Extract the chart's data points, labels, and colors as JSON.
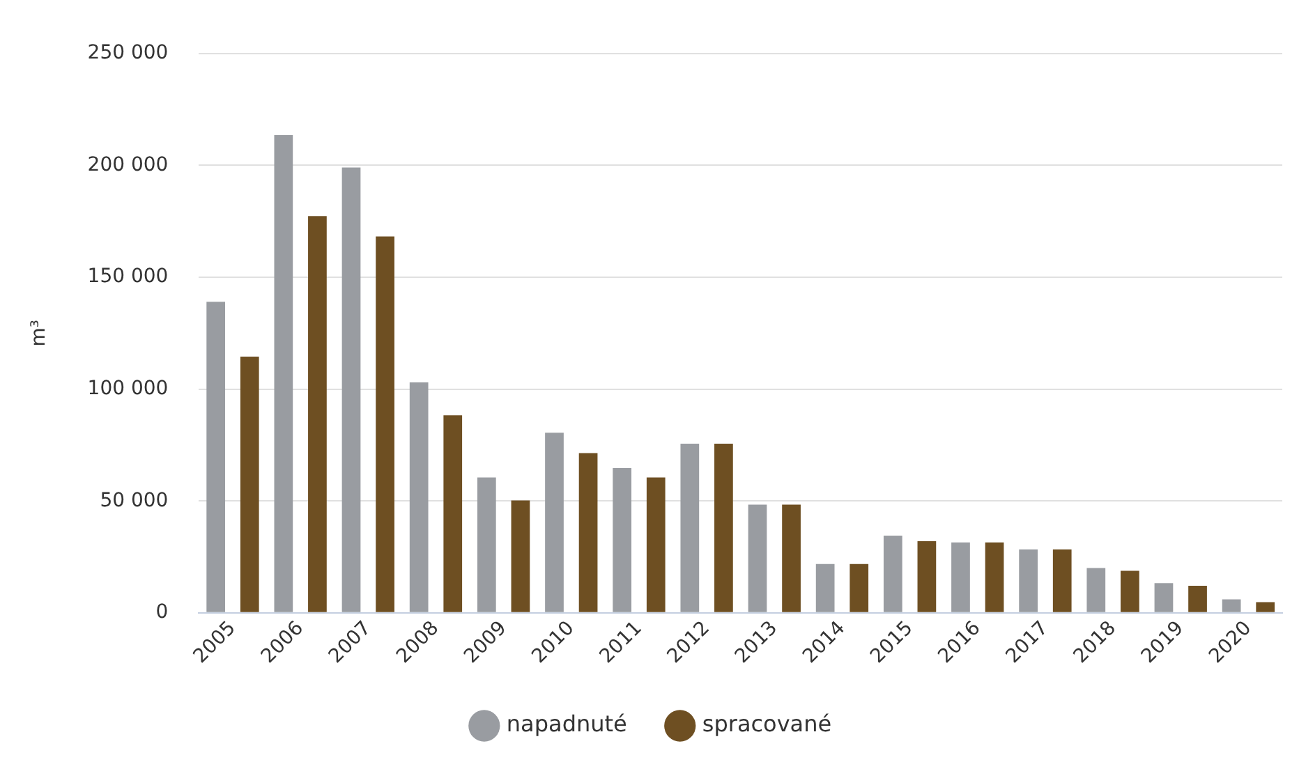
{
  "chart_data": {
    "type": "bar",
    "ylabel": "m³",
    "categories": [
      "2005",
      "2006",
      "2007",
      "2008",
      "2009",
      "2010",
      "2011",
      "2012",
      "2013",
      "2014",
      "2015",
      "2016",
      "2017",
      "2018",
      "2019",
      "2020"
    ],
    "series": [
      {
        "name": "napadnuté",
        "color": "#999ca1",
        "values": [
          139000,
          213500,
          199000,
          103000,
          60500,
          80500,
          64700,
          75600,
          48400,
          21800,
          34500,
          31500,
          28400,
          20000,
          13300,
          6000
        ]
      },
      {
        "name": "spracované",
        "color": "#6e4f22",
        "values": [
          114500,
          177300,
          168200,
          88300,
          50200,
          71400,
          60500,
          75600,
          48400,
          21800,
          32000,
          31500,
          28400,
          18800,
          12100,
          4800
        ]
      }
    ],
    "ylim": [
      0,
      250000
    ],
    "yticks": [
      {
        "value": 0,
        "label": "0"
      },
      {
        "value": 50000,
        "label": "50 000"
      },
      {
        "value": 100000,
        "label": "100 000"
      },
      {
        "value": 150000,
        "label": "150 000"
      },
      {
        "value": 200000,
        "label": "200 000"
      },
      {
        "value": 250000,
        "label": "250 000"
      }
    ],
    "grid": "y",
    "legend": "bottom"
  }
}
